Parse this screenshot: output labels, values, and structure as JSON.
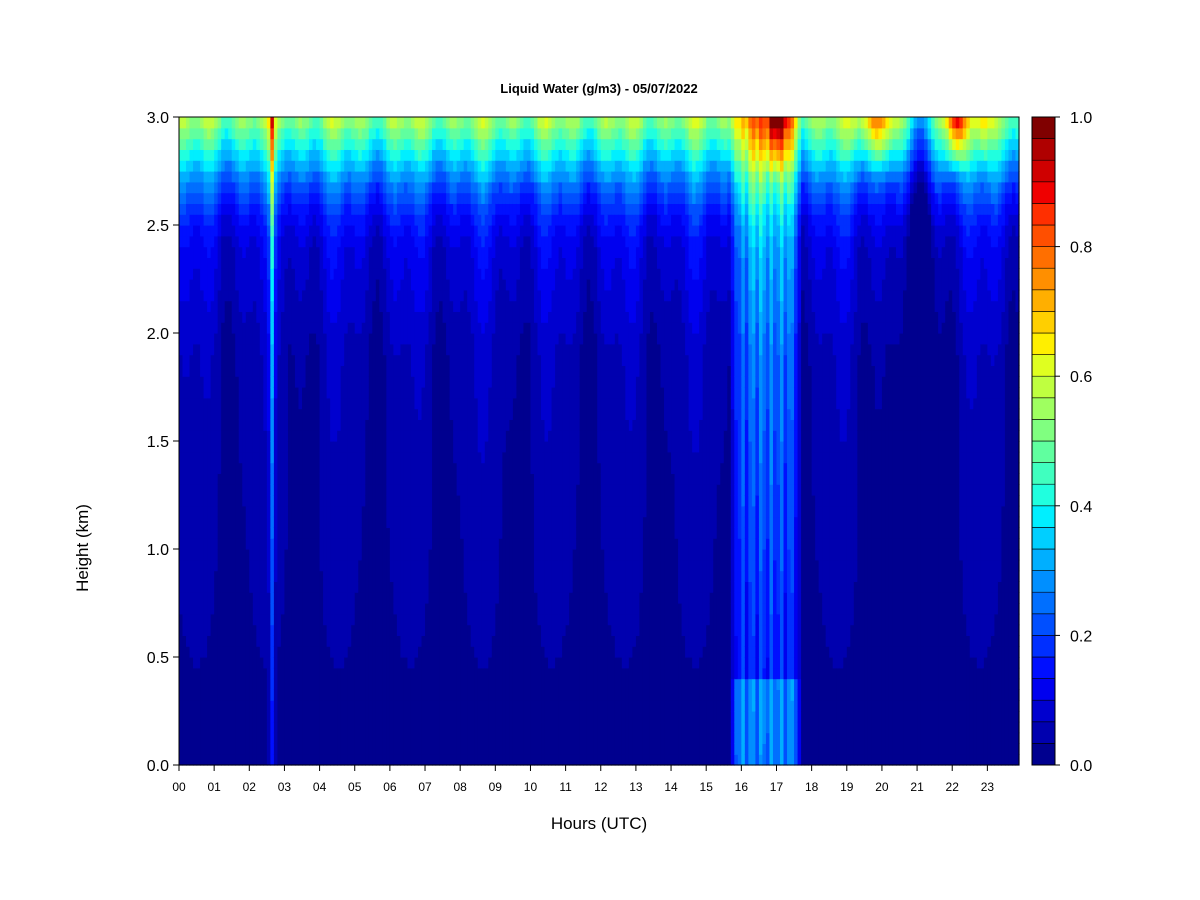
{
  "chart_data": {
    "type": "heatmap",
    "title": "Liquid Water (g/m3) - 05/07/2022",
    "xlabel": "Hours (UTC)",
    "ylabel": "Height (km)",
    "xlim": [
      0,
      23.9
    ],
    "ylim": [
      0,
      3.0
    ],
    "x_ticks": [
      "00",
      "01",
      "02",
      "03",
      "04",
      "05",
      "06",
      "07",
      "08",
      "09",
      "10",
      "11",
      "12",
      "13",
      "14",
      "15",
      "16",
      "17",
      "18",
      "19",
      "20",
      "21",
      "22",
      "23"
    ],
    "y_ticks": [
      "0.0",
      "0.5",
      "1.0",
      "1.5",
      "2.0",
      "2.5",
      "3.0"
    ],
    "colorbar": {
      "min": 0.0,
      "max": 1.0,
      "step": 0.05,
      "labels": [
        "0.0",
        "0.2",
        "0.4",
        "0.6",
        "0.8",
        "1.0"
      ],
      "colors": [
        "#00008F",
        "#0000AF",
        "#0000CF",
        "#0000EF",
        "#000FFF",
        "#002FFF",
        "#004FFF",
        "#006FFF",
        "#008FFF",
        "#00AFFF",
        "#00CFFF",
        "#00EFFF",
        "#20FFDF",
        "#40FFBF",
        "#60FF9F",
        "#80FF80",
        "#9FFF60",
        "#BFFF40",
        "#DFFF20",
        "#FFEF00",
        "#FFCF00",
        "#FFAF00",
        "#FF8F00",
        "#FF6F00",
        "#FF4F00",
        "#FF2F00",
        "#EF0000",
        "#CF0000",
        "#AF0000",
        "#800000"
      ]
    },
    "vertical_profile": {
      "note_heights_km": [
        0.0,
        1.9,
        2.2,
        2.4,
        2.55,
        2.7,
        2.8,
        2.9,
        3.0
      ],
      "typical_values": [
        0.02,
        0.05,
        0.08,
        0.1,
        0.15,
        0.25,
        0.35,
        0.45,
        0.55
      ]
    },
    "events": [
      {
        "hour": 2.65,
        "value": 0.35
      },
      {
        "hour": 16.7,
        "value": 0.3
      },
      {
        "hour": 21.0,
        "value": 0.15
      },
      {
        "hour": 22.1,
        "value": 0.9
      }
    ]
  }
}
